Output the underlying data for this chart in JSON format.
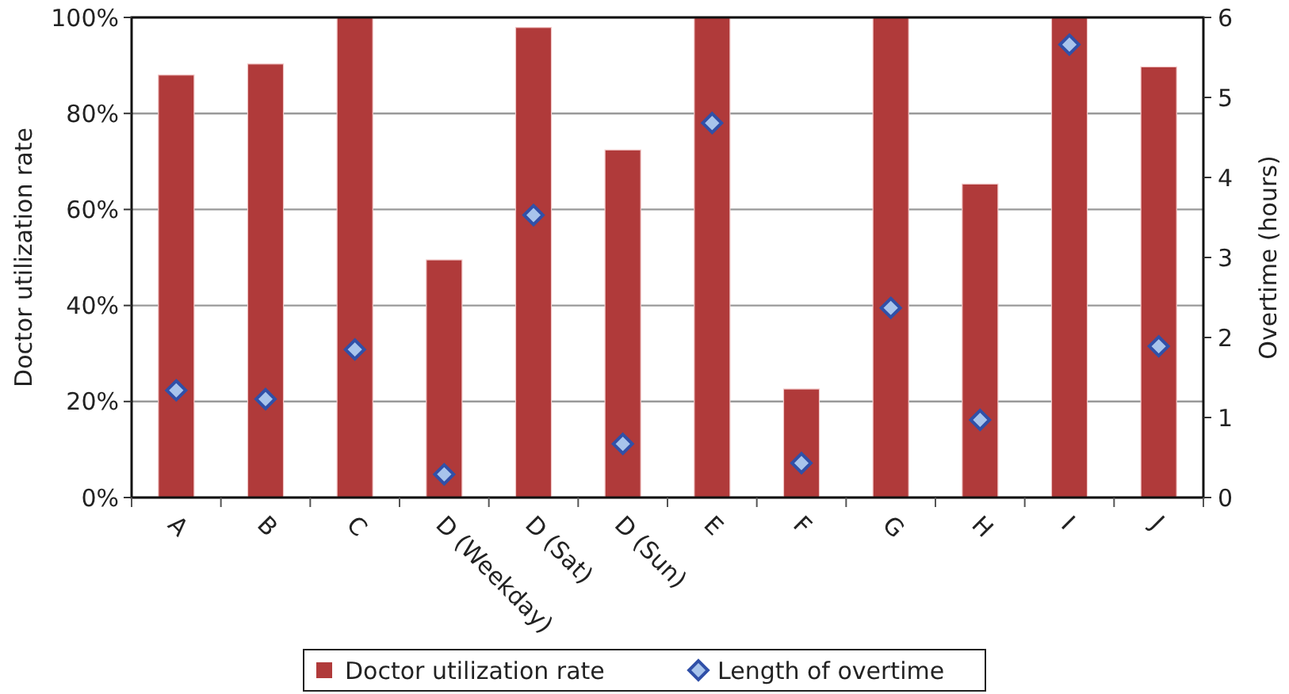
{
  "chart_data": {
    "type": "bar",
    "categories": [
      "A",
      "B",
      "C",
      "D (Weekday)",
      "D (Sat)",
      "D (Sun)",
      "E",
      "F",
      "G",
      "H",
      "I",
      "J"
    ],
    "ylabel": "Doctor utilization rate",
    "y2label": "Overtime (hours)",
    "ylim": [
      0,
      100
    ],
    "yticks": [
      {
        "value": 0,
        "label": "0%"
      },
      {
        "value": 20,
        "label": "20%"
      },
      {
        "value": 40,
        "label": "40%"
      },
      {
        "value": 60,
        "label": "60%"
      },
      {
        "value": 80,
        "label": "80%"
      },
      {
        "value": 100,
        "label": "100%"
      }
    ],
    "y2lim": [
      0,
      6
    ],
    "y2ticks": [
      0,
      1,
      2,
      3,
      4,
      5,
      6
    ],
    "grid": "y",
    "legend": "bottom",
    "series": [
      {
        "name": "Doctor utilization rate",
        "color": "#b03a3a",
        "values": [
          88,
          90.3,
          100,
          49.5,
          97.9,
          72.4,
          100,
          22.6,
          100,
          65.3,
          100,
          89.7
        ]
      },
      {
        "name": "Length of overtime",
        "type": "scatter",
        "axis": "y2",
        "marker": "diamond",
        "color": "#3050a8",
        "values": [
          1.34,
          1.23,
          1.85,
          0.29,
          3.53,
          0.67,
          4.68,
          0.43,
          2.37,
          0.97,
          5.66,
          1.89
        ]
      }
    ]
  }
}
